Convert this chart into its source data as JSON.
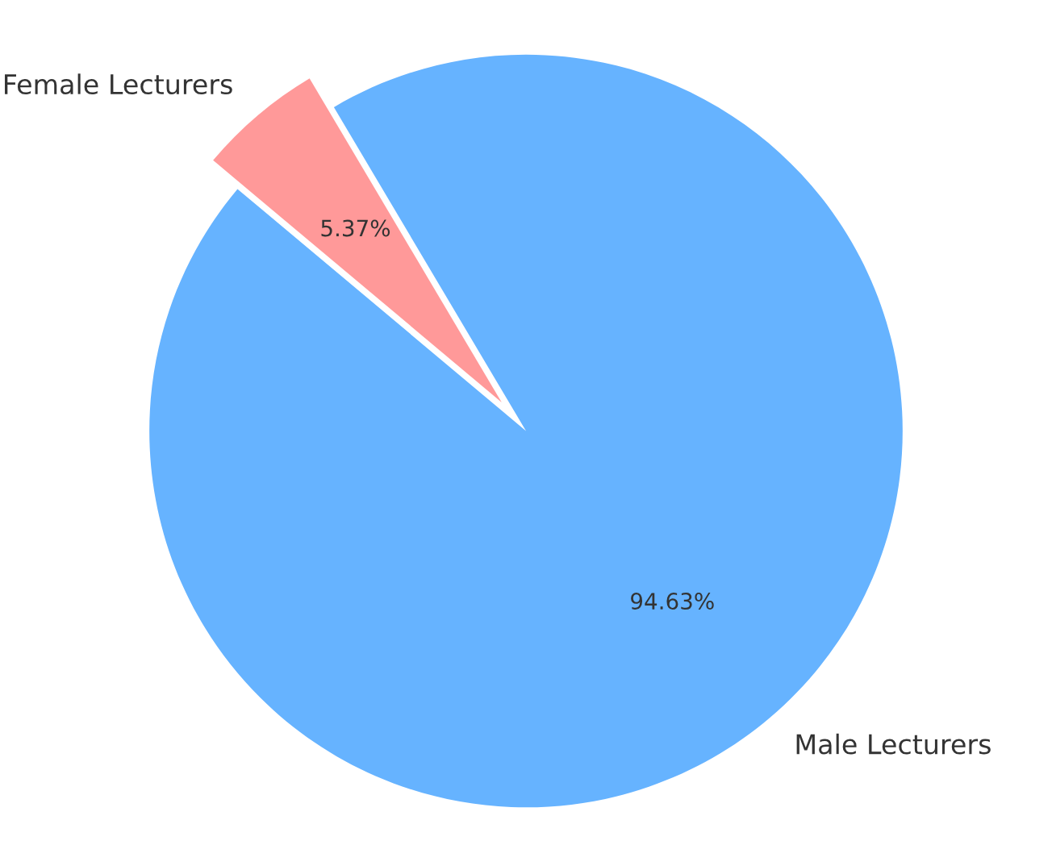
{
  "chart_data": {
    "type": "pie",
    "categories": [
      "Male Lecturers",
      "Female Lecturers"
    ],
    "values": [
      94.63,
      5.37
    ],
    "colors": [
      "#66b3ff",
      "#ff9999"
    ],
    "value_labels": [
      "94.63%",
      "5.37%"
    ]
  }
}
